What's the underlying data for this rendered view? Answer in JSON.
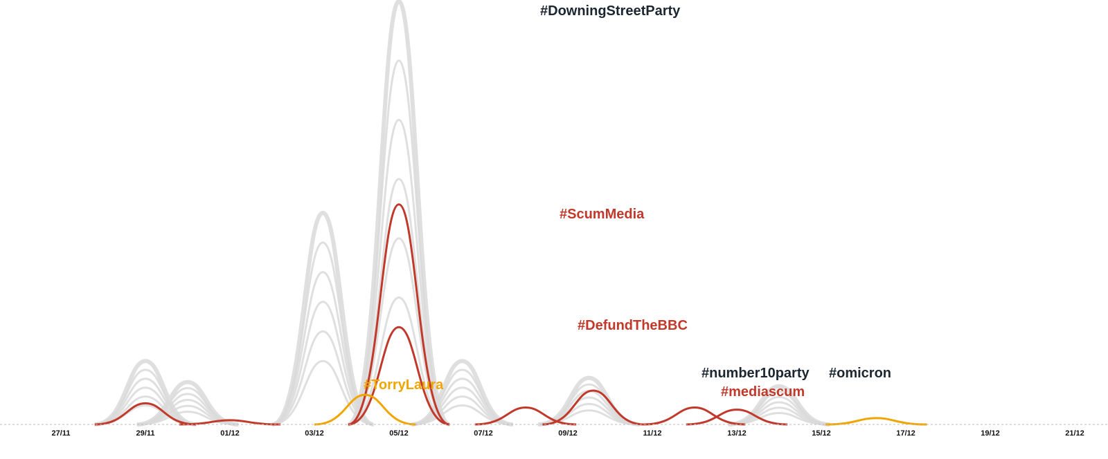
{
  "chart_data": {
    "type": "area",
    "title": "",
    "xlabel": "",
    "ylabel": "",
    "x_ticks": [
      "27/11",
      "29/11",
      "01/12",
      "03/12",
      "05/12",
      "07/12",
      "09/12",
      "11/12",
      "13/12",
      "15/12",
      "17/12",
      "19/12",
      "21/12"
    ],
    "colors": {
      "background_series": "#d9d9d9",
      "highlight_red": "#c0392b",
      "highlight_orange": "#f0a500",
      "dark_label": "#1b2631",
      "baseline": "#bbbbbb"
    },
    "labels": [
      {
        "text": "#DowningStreetParty",
        "color": "dark",
        "series": "DowningStreetParty"
      },
      {
        "text": "#ScumMedia",
        "color": "red",
        "series": "ScumMedia"
      },
      {
        "text": "#DefundTheBBC",
        "color": "red",
        "series": "DefundTheBBC"
      },
      {
        "text": "#TorryLaura",
        "color": "orange",
        "series": "TorryLaura"
      },
      {
        "text": "#number10party",
        "color": "dark",
        "series": "number10party"
      },
      {
        "text": "#mediascum",
        "color": "red",
        "series": "mediascum"
      },
      {
        "text": "#omicron",
        "color": "dark",
        "series": "omicron"
      }
    ],
    "series": [
      {
        "name": "DowningStreetParty",
        "highlight": "none",
        "peaks": [
          [
            8.0,
            100
          ]
        ]
      },
      {
        "name": "ScumMedia",
        "highlight": "red",
        "peaks": [
          [
            8.0,
            52
          ]
        ]
      },
      {
        "name": "DefundTheBBC",
        "highlight": "red",
        "peaks": [
          [
            8.0,
            23
          ]
        ]
      },
      {
        "name": "TorryLaura",
        "highlight": "orange",
        "peaks": [
          [
            7.2,
            7
          ],
          [
            19.3,
            1.5
          ]
        ]
      },
      {
        "name": "number10party",
        "highlight": "none",
        "peaks": [
          [
            12.5,
            11
          ]
        ]
      },
      {
        "name": "mediascum",
        "highlight": "red",
        "peaks": [
          [
            12.6,
            8
          ]
        ]
      },
      {
        "name": "omicron",
        "highlight": "none",
        "peaks": [
          [
            17.0,
            9
          ]
        ]
      },
      {
        "name": "",
        "highlight": "red",
        "peaks": [
          [
            2.0,
            5
          ],
          [
            4.0,
            1
          ]
        ]
      },
      {
        "name": "",
        "highlight": "red",
        "peaks": [
          [
            11.0,
            4
          ],
          [
            15.0,
            4
          ],
          [
            16.0,
            3.5
          ]
        ]
      },
      {
        "name": "",
        "highlight": "none",
        "peaks": [
          [
            2.0,
            15
          ],
          [
            3.0,
            10
          ],
          [
            6.2,
            50
          ],
          [
            9.5,
            15
          ]
        ]
      }
    ]
  }
}
